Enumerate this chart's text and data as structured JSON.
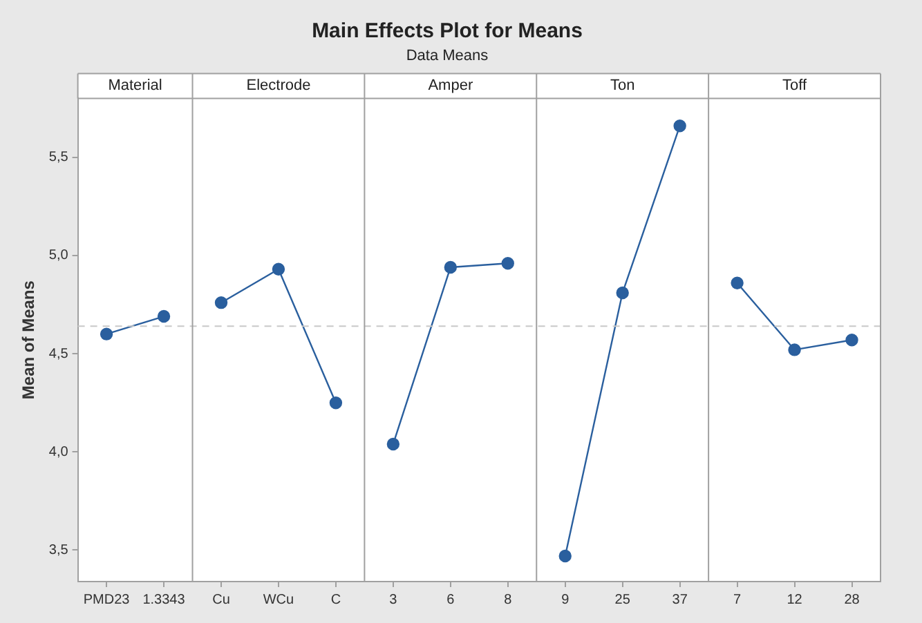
{
  "chart_data": {
    "type": "line",
    "title": "Main Effects Plot for Means",
    "subtitle": "Data Means",
    "ylabel": "Mean of Means",
    "categories": [
      "PMD23",
      "1.3343",
      "Cu",
      "WCu",
      "C",
      "3",
      "6",
      "8",
      "9",
      "25",
      "37",
      "7",
      "12",
      "28"
    ],
    "series": [
      {
        "color": "#2a5f9e",
        "values": [
          4.6,
          4.69,
          null,
          null,
          null,
          null,
          null,
          null,
          null,
          null,
          null,
          null,
          null,
          null
        ]
      },
      {
        "color": "#2a5f9e",
        "values": [
          null,
          null,
          4.76,
          4.93,
          4.25,
          null,
          null,
          null,
          null,
          null,
          null,
          null,
          null,
          null
        ]
      },
      {
        "color": "#2a5f9e",
        "values": [
          null,
          null,
          null,
          null,
          null,
          4.04,
          4.94,
          4.96,
          null,
          null,
          null,
          null,
          null,
          null
        ]
      },
      {
        "color": "#2a5f9e",
        "values": [
          null,
          null,
          null,
          null,
          null,
          null,
          null,
          null,
          3.47,
          4.81,
          5.66,
          null,
          null,
          null
        ]
      },
      {
        "color": "#2a5f9e",
        "values": [
          null,
          null,
          null,
          null,
          null,
          null,
          null,
          null,
          null,
          null,
          null,
          4.86,
          4.52,
          4.57
        ]
      }
    ],
    "annotations": [
      "Material",
      "Electrode",
      "Amper",
      "Ton",
      "Toff"
    ],
    "ylim": [
      3.34,
      5.8
    ],
    "yticks": [
      {
        "value": 3.5,
        "label": "3,5"
      },
      {
        "value": 4.0,
        "label": "4,0"
      },
      {
        "value": 4.5,
        "label": "4,5"
      },
      {
        "value": 5.0,
        "label": "5,0"
      },
      {
        "value": 5.5,
        "label": "5,5"
      }
    ],
    "ref_lines": [
      {
        "axis": "y",
        "value": 4.64,
        "color": "#c8c8c8",
        "line_style": "dashed"
      }
    ],
    "grid": false,
    "legend": false,
    "marker": "circle",
    "line_style": "solid"
  }
}
